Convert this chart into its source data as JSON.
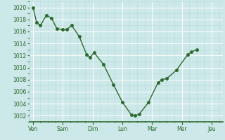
{
  "x_labels": [
    "Ven",
    "Sam",
    "Dim",
    "Lun",
    "Mar",
    "Mer",
    "Jeu"
  ],
  "x_tick_pos": [
    0,
    40,
    80,
    120,
    160,
    200,
    240
  ],
  "y_values": [
    1020,
    1017.5,
    1017,
    1018.7,
    1018.2,
    1016.5,
    1016.3,
    1016.3,
    1017,
    1015.2,
    1012.2,
    1011.7,
    1012.5,
    1010.5,
    1007.2,
    1004.3,
    1002.2,
    1002.0,
    1002.3,
    1004.2,
    1007.5,
    1008.0,
    1008.2,
    1009.6,
    1012.2,
    1012.6,
    1013.0
  ],
  "x_data": [
    0,
    5,
    10,
    18,
    25,
    32,
    40,
    45,
    52,
    62,
    72,
    77,
    82,
    95,
    108,
    120,
    132,
    137,
    143,
    155,
    168,
    173,
    180,
    193,
    208,
    213,
    220
  ],
  "xlim": [
    -5,
    255
  ],
  "ylim": [
    1001,
    1021
  ],
  "yticks": [
    1002,
    1004,
    1006,
    1008,
    1010,
    1012,
    1014,
    1016,
    1018,
    1020
  ],
  "line_color": "#2d6a2d",
  "marker_color": "#2d6a2d",
  "bg_color": "#cce8e8",
  "grid_major_color": "#ffffff",
  "grid_minor_color": "#b8d8d8",
  "tick_label_color": "#2d6a2d",
  "spine_bottom_color": "#2d6a2d",
  "spine_other_color": "#aacccc"
}
